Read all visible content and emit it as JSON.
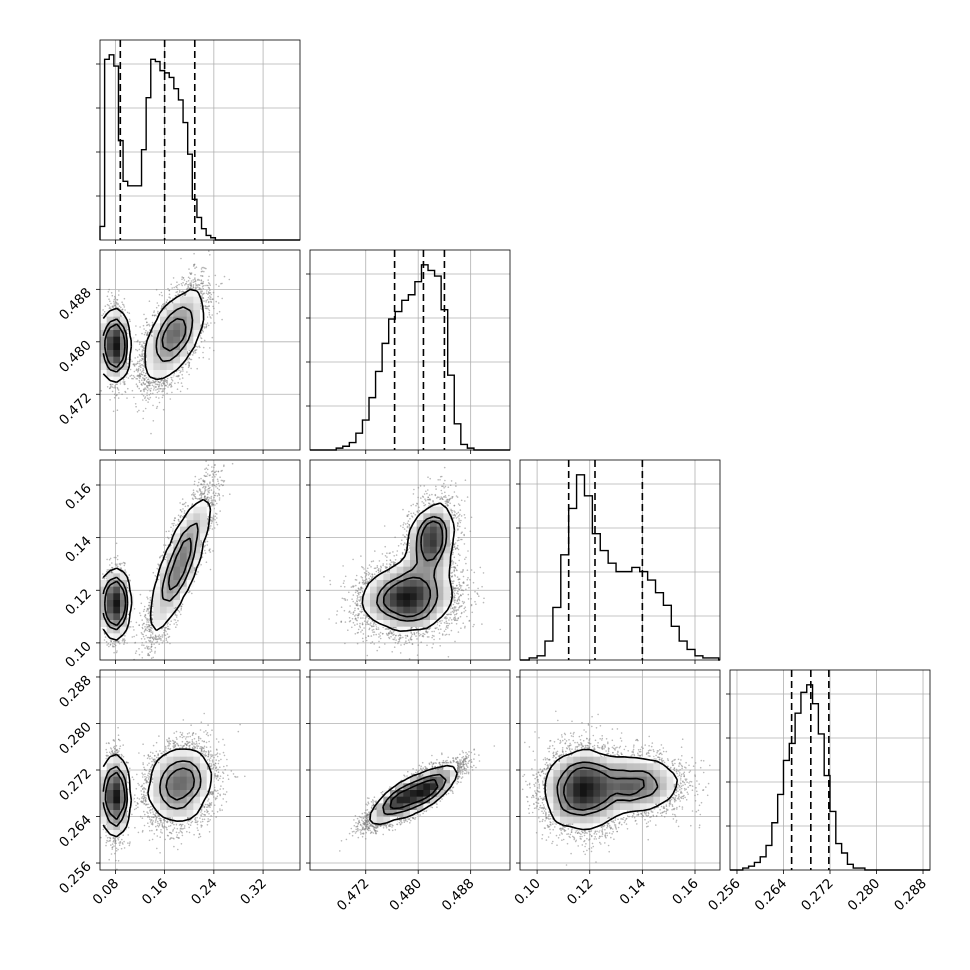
{
  "figure": {
    "type": "corner-plot",
    "colors": {
      "line": "#000000",
      "grid": "#b0b0b0",
      "density_dark": "#111111",
      "scatter": "#808080"
    }
  },
  "chart_data": {
    "type": "scatter",
    "params": [
      {
        "id": "p0",
        "range": [
          0.055,
          0.38
        ],
        "ticks": [
          "0.08",
          "0.16",
          "0.24",
          "0.32"
        ],
        "tick_values": [
          0.08,
          0.16,
          0.24,
          0.32
        ],
        "quantiles": [
          0.088,
          0.16,
          0.209
        ]
      },
      {
        "id": "p1",
        "range": [
          0.4635,
          0.494
        ],
        "ticks": [
          "0.472",
          "0.480",
          "0.488"
        ],
        "tick_values": [
          0.472,
          0.48,
          0.488
        ],
        "quantiles": [
          0.4764,
          0.4808,
          0.484
        ]
      },
      {
        "id": "p2",
        "range": [
          0.0935,
          0.1695
        ],
        "ticks": [
          "0.10",
          "0.12",
          "0.14",
          "0.16"
        ],
        "tick_values": [
          0.1,
          0.12,
          0.14,
          0.16
        ],
        "quantiles": [
          0.112,
          0.122,
          0.14
        ]
      },
      {
        "id": "p3",
        "range": [
          0.2548,
          0.2892
        ],
        "ticks": [
          "0.256",
          "0.264",
          "0.272",
          "0.280",
          "0.288"
        ],
        "tick_values": [
          0.256,
          0.264,
          0.272,
          0.28,
          0.288
        ],
        "quantiles": [
          0.2654,
          0.2687,
          0.2718
        ]
      }
    ],
    "histograms": [
      {
        "param": 0,
        "edges": [
          0.055,
          0.0625,
          0.07,
          0.0775,
          0.085,
          0.0925,
          0.1,
          0.1075,
          0.115,
          0.1225,
          0.13,
          0.1375,
          0.145,
          0.1525,
          0.16,
          0.1675,
          0.175,
          0.1825,
          0.19,
          0.1975,
          0.205,
          0.2125,
          0.22,
          0.2275,
          0.235,
          0.2425,
          0.25,
          0.2575,
          0.265,
          0.2725,
          0.28
        ],
        "counts": [
          6,
          80,
          82,
          77,
          44,
          26,
          24,
          24,
          24,
          40,
          63,
          80,
          79,
          75,
          74,
          72,
          67,
          62,
          52,
          38,
          18,
          10,
          5,
          2,
          1,
          0,
          0,
          0,
          0,
          0
        ]
      },
      {
        "param": 1,
        "edges": [
          0.4675,
          0.4685,
          0.4695,
          0.4705,
          0.4715,
          0.4725,
          0.4735,
          0.4745,
          0.4755,
          0.4765,
          0.4775,
          0.4785,
          0.4795,
          0.4805,
          0.4815,
          0.4825,
          0.4835,
          0.4845,
          0.4855,
          0.4865,
          0.4875,
          0.4885,
          0.4895
        ],
        "counts": [
          1,
          2,
          4,
          9,
          16,
          28,
          42,
          57,
          70,
          74,
          80,
          83,
          90,
          99,
          96,
          93,
          75,
          40,
          14,
          3,
          1,
          0
        ]
      },
      {
        "param": 2,
        "edges": [
          0.097,
          0.1,
          0.103,
          0.106,
          0.109,
          0.112,
          0.115,
          0.118,
          0.121,
          0.124,
          0.127,
          0.13,
          0.133,
          0.136,
          0.139,
          0.142,
          0.145,
          0.148,
          0.151,
          0.154,
          0.157,
          0.16,
          0.163,
          0.166,
          0.169
        ],
        "counts": [
          1,
          2,
          9,
          25,
          50,
          72,
          88,
          78,
          60,
          52,
          46,
          42,
          42,
          44,
          42,
          38,
          32,
          26,
          16,
          9,
          5,
          2,
          1,
          1
        ]
      },
      {
        "param": 3,
        "edges": [
          0.257,
          0.258,
          0.259,
          0.26,
          0.261,
          0.262,
          0.263,
          0.264,
          0.265,
          0.266,
          0.267,
          0.268,
          0.269,
          0.27,
          0.271,
          0.272,
          0.273,
          0.274,
          0.275,
          0.276,
          0.277,
          0.278,
          0.279,
          0.28,
          0.281,
          0.282,
          0.283,
          0.284
        ],
        "counts": [
          1,
          2,
          4,
          7,
          13,
          25,
          40,
          58,
          67,
          83,
          94,
          98,
          88,
          72,
          50,
          31,
          14,
          9,
          3,
          1,
          1,
          0,
          0,
          0,
          0,
          0,
          0
        ]
      }
    ],
    "joint_modes": [
      {
        "pair": [
          0,
          1
        ],
        "modes": [
          {
            "mean": [
              0.08,
              0.4795
            ],
            "sd": [
              0.008,
              0.0025
            ],
            "corr": 0.0,
            "weight": 0.4
          },
          {
            "mean": [
              0.175,
              0.481
            ],
            "sd": [
              0.024,
              0.0035
            ],
            "corr": 0.6,
            "weight": 0.6
          }
        ]
      },
      {
        "pair": [
          0,
          2
        ],
        "modes": [
          {
            "mean": [
              0.08,
              0.115
            ],
            "sd": [
              0.008,
              0.006
            ],
            "corr": 0.0,
            "weight": 0.4
          },
          {
            "mean": [
              0.185,
              0.13
            ],
            "sd": [
              0.024,
              0.013
            ],
            "corr": 0.85,
            "weight": 0.6
          }
        ]
      },
      {
        "pair": [
          1,
          2
        ],
        "modes": [
          {
            "mean": [
              0.4785,
              0.117
            ],
            "sd": [
              0.0035,
              0.0065
            ],
            "corr": 0.1,
            "weight": 0.65
          },
          {
            "mean": [
              0.482,
              0.139
            ],
            "sd": [
              0.0018,
              0.0075
            ],
            "corr": 0.25,
            "weight": 0.35
          }
        ]
      },
      {
        "pair": [
          0,
          3
        ],
        "modes": [
          {
            "mean": [
              0.08,
              0.2675
            ],
            "sd": [
              0.008,
              0.0033
            ],
            "corr": 0.0,
            "weight": 0.4
          },
          {
            "mean": [
              0.185,
              0.2695
            ],
            "sd": [
              0.026,
              0.0032
            ],
            "corr": 0.15,
            "weight": 0.6
          }
        ]
      },
      {
        "pair": [
          1,
          3
        ],
        "modes": [
          {
            "mean": [
              0.4772,
              0.267
            ],
            "sd": [
              0.0024,
              0.0022
            ],
            "corr": 0.85,
            "weight": 0.5
          },
          {
            "mean": [
              0.4815,
              0.2685
            ],
            "sd": [
              0.0024,
              0.0022
            ],
            "corr": 0.85,
            "weight": 0.5
          }
        ]
      },
      {
        "pair": [
          2,
          3
        ],
        "modes": [
          {
            "mean": [
              0.117,
              0.2685
            ],
            "sd": [
              0.007,
              0.0035
            ],
            "corr": 0.0,
            "weight": 0.6
          },
          {
            "mean": [
              0.137,
              0.2695
            ],
            "sd": [
              0.009,
              0.0025
            ],
            "corr": 0.0,
            "weight": 0.4
          }
        ]
      }
    ],
    "contour_levels": [
      0.393,
      0.865,
      1.0
    ],
    "title": "",
    "xlabel": "",
    "ylabel": "",
    "grid": true,
    "legend": "none"
  }
}
